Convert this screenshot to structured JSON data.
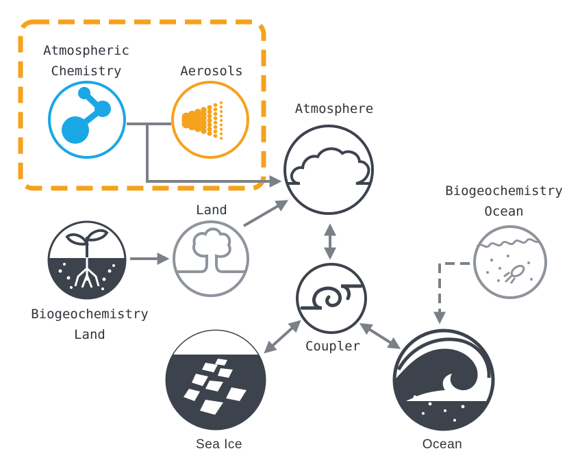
{
  "diagram": {
    "nodes": {
      "atmospheric_chemistry": {
        "label_line1": "Atmospheric",
        "label_line2": "Chemistry",
        "icon": "molecule-icon",
        "color": "#1aa7e6"
      },
      "aerosols": {
        "label": "Aerosols",
        "icon": "spray-icon",
        "color": "#f5a21c"
      },
      "atmosphere": {
        "label": "Atmosphere",
        "icon": "cloud-icon",
        "color": "#3d434c"
      },
      "land": {
        "label": "Land",
        "icon": "tree-icon",
        "color": "#8e949b"
      },
      "biogeochemistry_land": {
        "label_line1": "Biogeochemistry",
        "label_line2": "Land",
        "icon": "plant-roots-icon",
        "color": "#3d434c"
      },
      "coupler": {
        "label": "Coupler",
        "icon": "swirl-icon",
        "color": "#3d434c"
      },
      "biogeochemistry_ocean": {
        "label_line1": "Biogeochemistry",
        "label_line2": "Ocean",
        "icon": "plankton-icon",
        "color": "#8e949b"
      },
      "sea_ice": {
        "label": "Sea Ice",
        "icon": "ice-floes-icon",
        "color": "#3d434c"
      },
      "ocean": {
        "label": "Ocean",
        "icon": "wave-icon",
        "color": "#3d434c"
      }
    },
    "group_highlight_color": "#f5a21c",
    "connector_color": "#7b8087"
  }
}
